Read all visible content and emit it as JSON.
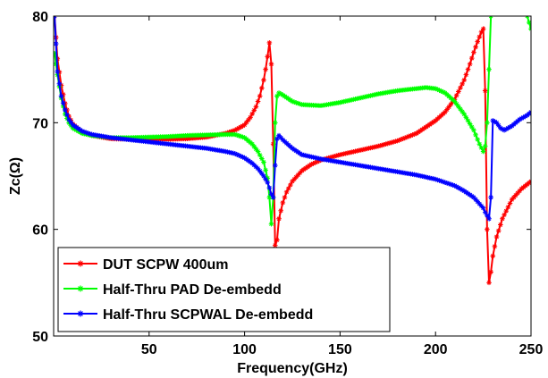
{
  "chart_data": {
    "type": "line",
    "xlabel": "Frequency(GHz)",
    "ylabel": "Zc(Ω)",
    "xlim": [
      0,
      250
    ],
    "ylim": [
      50,
      80
    ],
    "xticks": [
      50,
      100,
      150,
      200,
      250
    ],
    "yticks": [
      50,
      60,
      70,
      80
    ],
    "grid": false,
    "legend_position": "bottom-left",
    "series": [
      {
        "name": "DUT SCPW 400um",
        "color": "#ff0000",
        "marker": "star",
        "x": [
          0.5,
          2,
          4,
          6,
          8,
          10,
          15,
          20,
          30,
          40,
          50,
          60,
          70,
          80,
          90,
          95,
          100,
          103,
          106,
          108,
          110,
          111,
          112,
          113,
          114,
          115,
          116,
          117,
          118,
          120,
          122,
          125,
          130,
          135,
          140,
          150,
          160,
          170,
          180,
          190,
          200,
          205,
          210,
          215,
          218,
          220,
          222,
          224,
          225,
          226,
          227,
          228,
          229,
          230,
          232,
          235,
          240,
          245,
          250
        ],
        "y": [
          80,
          76,
          73.5,
          71.8,
          70.6,
          69.9,
          69.1,
          68.8,
          68.5,
          68.45,
          68.45,
          68.45,
          68.5,
          68.65,
          69,
          69.3,
          69.8,
          70.5,
          71.5,
          72.5,
          74,
          75,
          76.2,
          77.5,
          75.5,
          68,
          58.5,
          59,
          61,
          62.5,
          63.5,
          64.5,
          65.5,
          66.1,
          66.5,
          67,
          67.4,
          67.8,
          68.3,
          69,
          70.2,
          71,
          72.2,
          74,
          75.5,
          76.6,
          77.6,
          78.5,
          78.8,
          73,
          60,
          55,
          56,
          57.5,
          59.3,
          61,
          62.8,
          63.8,
          64.5
        ]
      },
      {
        "name": "Half-Thru PAD De-embedd",
        "color": "#00ff00",
        "marker": "star",
        "x": [
          0.5,
          2,
          4,
          6,
          8,
          10,
          15,
          20,
          30,
          40,
          50,
          60,
          70,
          80,
          90,
          95,
          100,
          104,
          107,
          110,
          112,
          113,
          114,
          115,
          116,
          117,
          118,
          120,
          125,
          130,
          140,
          150,
          160,
          170,
          180,
          190,
          195,
          200,
          205,
          210,
          215,
          220,
          223,
          225,
          226,
          227,
          228,
          229,
          230,
          235,
          240,
          245,
          248,
          250
        ],
        "y": [
          76.5,
          74.5,
          72.3,
          70.8,
          70,
          69.5,
          69,
          68.8,
          68.6,
          68.6,
          68.65,
          68.7,
          68.8,
          68.85,
          68.9,
          68.9,
          68.6,
          68,
          67.3,
          66.3,
          64.8,
          63,
          60.5,
          63,
          70,
          72.5,
          72.8,
          72.6,
          72,
          71.7,
          71.6,
          71.9,
          72.3,
          72.7,
          73,
          73.2,
          73.3,
          73.2,
          72.8,
          72,
          70.8,
          69.3,
          68,
          67.3,
          67.8,
          70,
          75,
          80,
          82,
          82,
          82,
          82,
          80,
          78.8
        ]
      },
      {
        "name": "Half-Thru SCPWAL De-embedd",
        "color": "#0000ff",
        "marker": "star",
        "x": [
          0.5,
          2,
          4,
          6,
          8,
          10,
          15,
          20,
          30,
          40,
          50,
          60,
          70,
          80,
          90,
          95,
          100,
          104,
          107,
          110,
          112,
          113,
          114,
          115,
          116,
          117,
          118,
          120,
          125,
          130,
          140,
          150,
          160,
          170,
          180,
          190,
          200,
          205,
          210,
          215,
          220,
          223,
          225,
          226,
          227,
          228,
          229,
          230,
          232,
          234,
          236,
          240,
          244,
          248,
          250
        ],
        "y": [
          80,
          74.8,
          72.5,
          71.2,
          70.3,
          69.8,
          69.2,
          68.9,
          68.6,
          68.4,
          68.2,
          68,
          67.8,
          67.6,
          67.3,
          67.1,
          66.7,
          66.2,
          65.7,
          65,
          64.4,
          63.9,
          63.3,
          63,
          66,
          68.5,
          68.8,
          68.4,
          67.6,
          67,
          66.6,
          66.3,
          66,
          65.7,
          65.4,
          65.1,
          64.7,
          64.4,
          64.1,
          63.6,
          63,
          62.4,
          62,
          61.6,
          61.3,
          61,
          63,
          70.2,
          70,
          69.5,
          69.3,
          69.7,
          70.3,
          70.7,
          71
        ]
      }
    ]
  }
}
